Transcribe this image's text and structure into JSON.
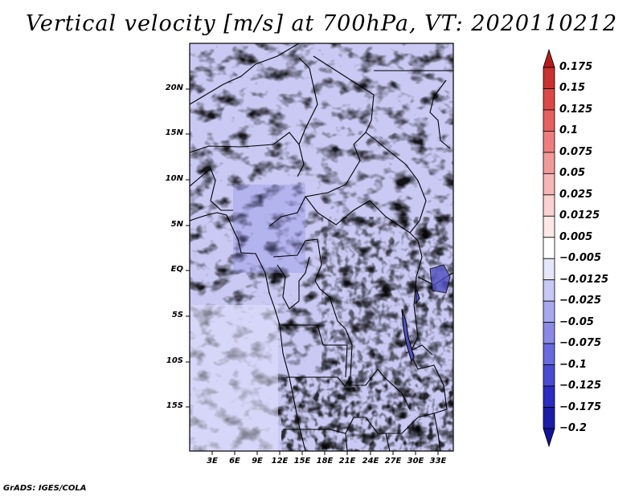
{
  "title": "Vertical velocity [m/s] at 700hPa, VT: 2020110212",
  "credit": "GrADS: IGES/COLA",
  "map": {
    "lat_labels": [
      "20N",
      "15N",
      "10N",
      "5N",
      "EQ",
      "5S",
      "10S",
      "15S"
    ],
    "lon_labels": [
      "3E",
      "6E",
      "9E",
      "12E",
      "15E",
      "18E",
      "21E",
      "24E",
      "27E",
      "30E",
      "33E"
    ]
  },
  "colorbar": {
    "labels": [
      "0.175",
      "0.15",
      "0.125",
      "0.1",
      "0.075",
      "0.05",
      "0.025",
      "0.0125",
      "0.005",
      "−0.005",
      "−0.0125",
      "−0.025",
      "−0.05",
      "−0.075",
      "−0.1",
      "−0.125",
      "−0.175",
      "−0.2"
    ],
    "colors": [
      "#b41c1c",
      "#c93030",
      "#dc4848",
      "#e66060",
      "#ee7e7e",
      "#f29a9a",
      "#f6b6b6",
      "#fad2d2",
      "#fde8e8",
      "#ffffff",
      "#e6e6fb",
      "#c8c8f5",
      "#a8a8ee",
      "#8a8ae6",
      "#6a6ade",
      "#4a4ad2",
      "#2c2cc2",
      "#1c1ca8",
      "#12129a"
    ]
  }
}
